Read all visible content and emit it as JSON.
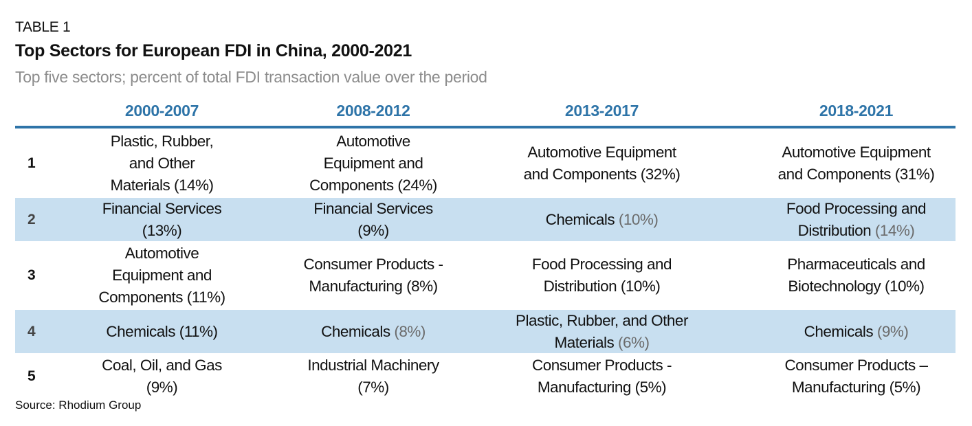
{
  "label": "TABLE 1",
  "title": "Top Sectors for European FDI in China, 2000-2021",
  "subtitle": "Top five sectors; percent of total FDI transaction value over the period",
  "columns": [
    "2000-2007",
    "2008-2012",
    "2013-2017",
    "2018-2021"
  ],
  "rows": [
    {
      "rank": "1",
      "cells": [
        {
          "name": "Plastic, Rubber,\nand Other\nMaterials ",
          "pct": "(14%)",
          "gray": false
        },
        {
          "name": "Automotive\nEquipment and\nComponents ",
          "pct": "(24%)",
          "gray": false
        },
        {
          "name": "Automotive Equipment\nand Components ",
          "pct": "(32%)",
          "gray": false
        },
        {
          "name": "Automotive Equipment\nand Components ",
          "pct": "(31%)",
          "gray": false
        }
      ]
    },
    {
      "rank": "2",
      "cells": [
        {
          "name": "Financial Services\n",
          "pct": "(13%)",
          "gray": false
        },
        {
          "name": "Financial Services\n",
          "pct": "(9%)",
          "gray": false
        },
        {
          "name": "Chemicals ",
          "pct": "(10%)",
          "gray": true
        },
        {
          "name": "Food Processing and\nDistribution ",
          "pct": "(14%)",
          "gray": true
        }
      ]
    },
    {
      "rank": "3",
      "cells": [
        {
          "name": "Automotive\nEquipment and\nComponents ",
          "pct": "(11%)",
          "gray": false
        },
        {
          "name": "Consumer Products -\nManufacturing ",
          "pct": "(8%)",
          "gray": false
        },
        {
          "name": "Food Processing and\nDistribution ",
          "pct": "(10%)",
          "gray": false
        },
        {
          "name": "Pharmaceuticals and\nBiotechnology ",
          "pct": "(10%)",
          "gray": false
        }
      ]
    },
    {
      "rank": "4",
      "cells": [
        {
          "name": "Chemicals ",
          "pct": "(11%)",
          "gray": false
        },
        {
          "name": "Chemicals ",
          "pct": "(8%)",
          "gray": true
        },
        {
          "name": "Plastic, Rubber, and Other\nMaterials ",
          "pct": "(6%)",
          "gray": true
        },
        {
          "name": "Chemicals ",
          "pct": "(9%)",
          "gray": true
        }
      ]
    },
    {
      "rank": "5",
      "cells": [
        {
          "name": "Coal, Oil, and Gas\n",
          "pct": "(9%)",
          "gray": false
        },
        {
          "name": "Industrial Machinery\n",
          "pct": "(7%)",
          "gray": false
        },
        {
          "name": "Consumer Products -\nManufacturing ",
          "pct": "(5%)",
          "gray": false
        },
        {
          "name": "Consumer Products –\nManufacturing ",
          "pct": "(5%)",
          "gray": false
        }
      ]
    }
  ],
  "source": "Source: Rhodium Group",
  "colors": {
    "accent": "#2e74a8",
    "shade": "#c8dff0",
    "subtitle": "#8c8c8c"
  }
}
